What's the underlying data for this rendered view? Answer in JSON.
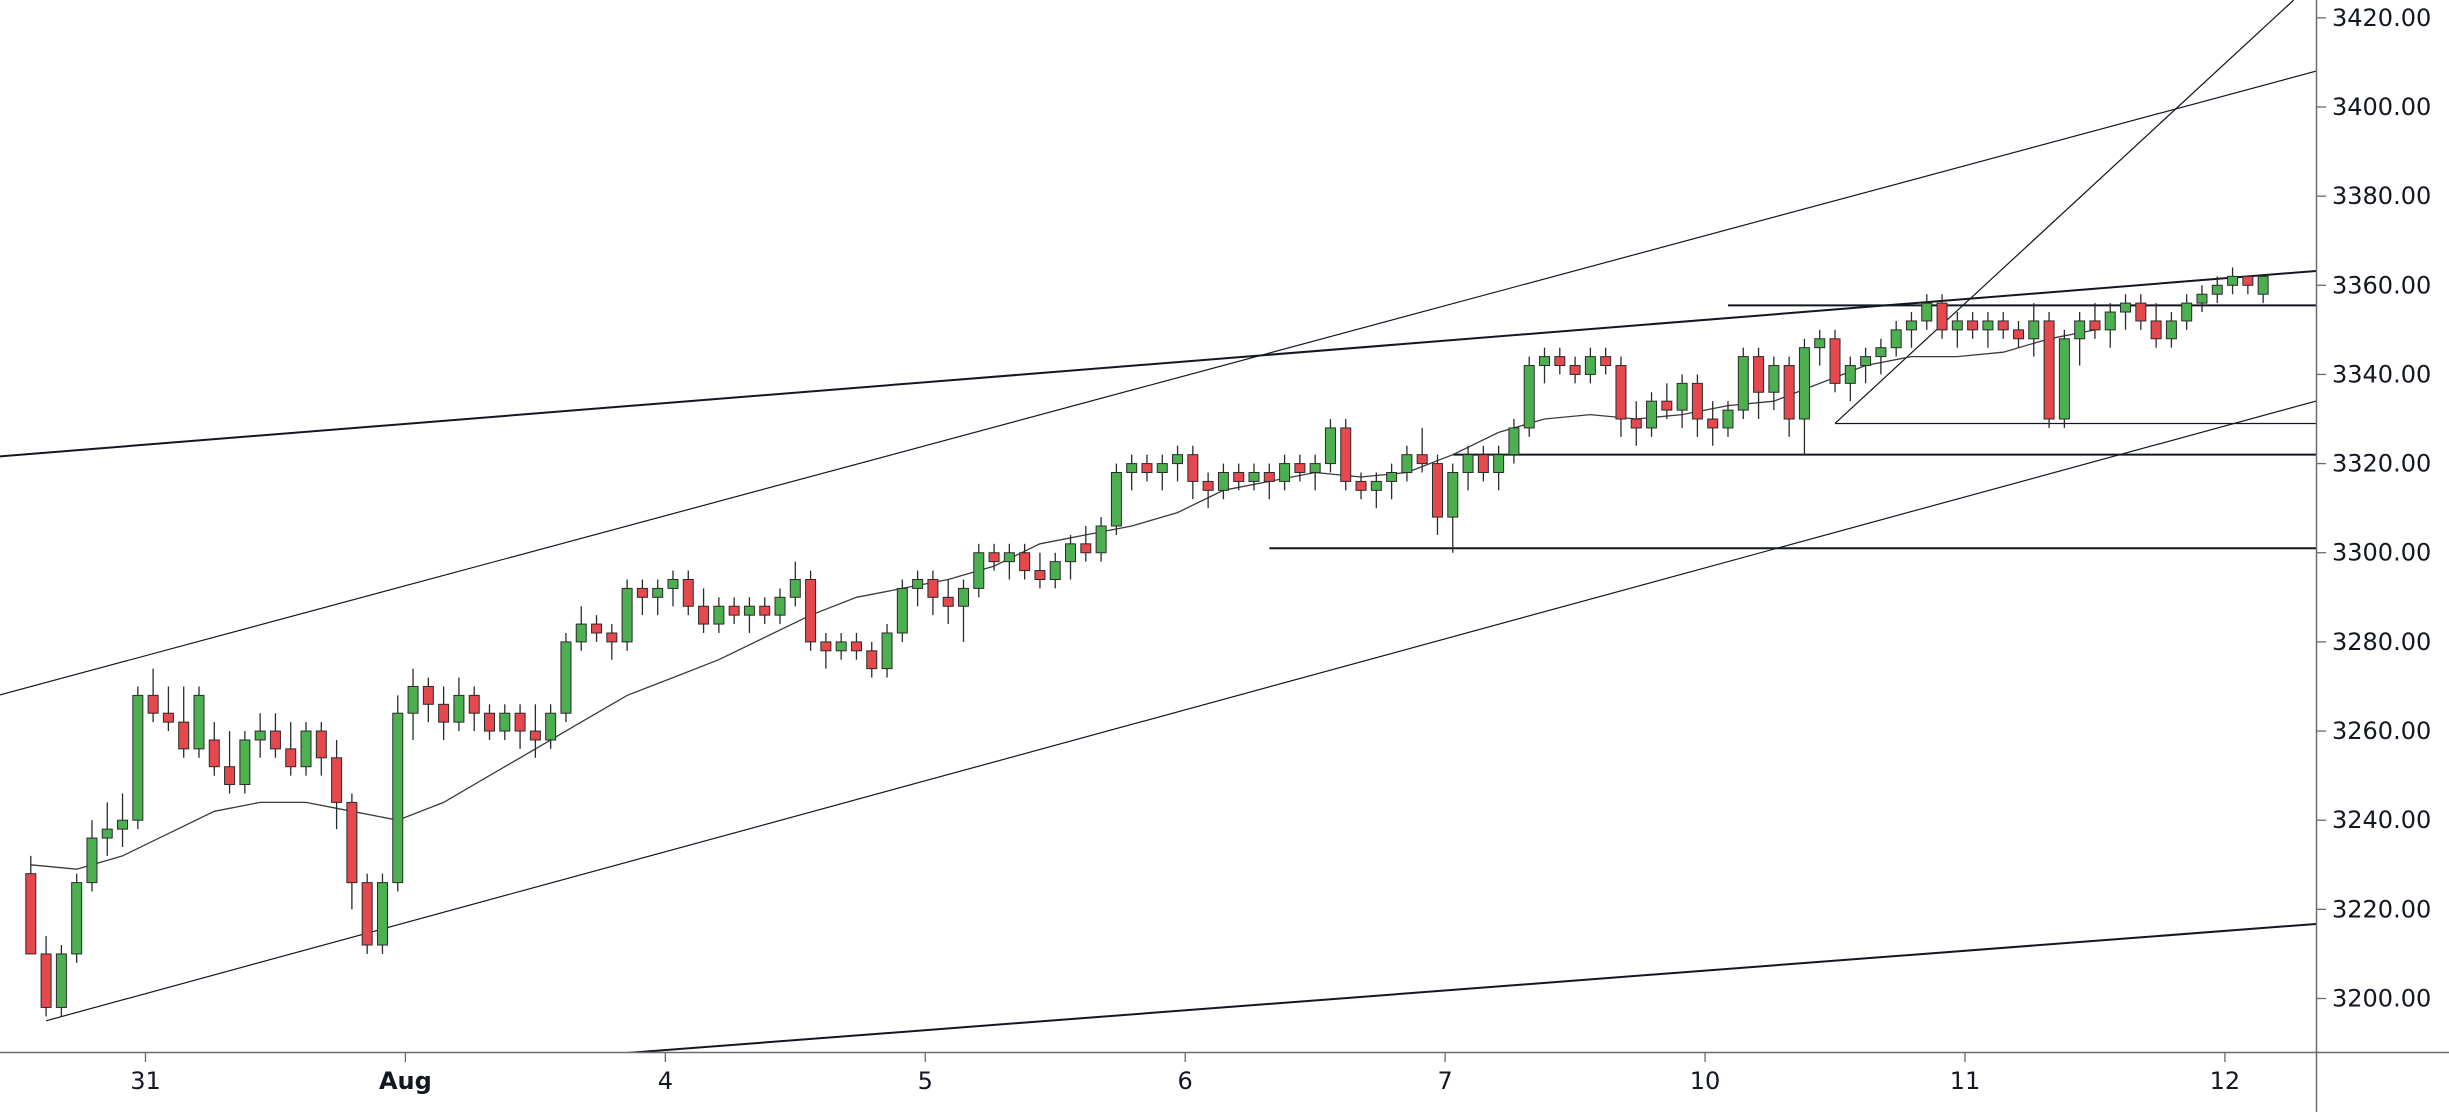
{
  "chart_data": {
    "type": "candlestick",
    "title": "",
    "xlabel": "",
    "ylabel": "",
    "ylim": [
      3188,
      3424
    ],
    "grid": false,
    "legend": "none",
    "colors": {
      "up_fill": "#4caf50",
      "down_fill": "#e5484d",
      "wick": "#2b2b2b",
      "line": "#131722",
      "axis": "#6b6b6b",
      "background": "#ffffff"
    },
    "y_ticks": [
      "3200.00",
      "3220.00",
      "3240.00",
      "3260.00",
      "3280.00",
      "3300.00",
      "3320.00",
      "3340.00",
      "3360.00",
      "3380.00",
      "3400.00",
      "3420.00"
    ],
    "x_ticks": [
      {
        "label": "31",
        "bar": 7.5,
        "bold": false
      },
      {
        "label": "Aug",
        "bar": 24.5,
        "bold": true
      },
      {
        "label": "4",
        "bar": 41.5,
        "bold": false
      },
      {
        "label": "5",
        "bar": 58.5,
        "bold": false
      },
      {
        "label": "6",
        "bar": 75.5,
        "bold": false
      },
      {
        "label": "7",
        "bar": 92.5,
        "bold": false
      },
      {
        "label": "10",
        "bar": 109.5,
        "bold": false
      },
      {
        "label": "11",
        "bar": 126.5,
        "bold": false
      },
      {
        "label": "12",
        "bar": 143.5,
        "bold": false
      }
    ],
    "bar_range": [
      0,
      150.5
    ],
    "candles": [
      [
        3228,
        3232,
        3212,
        3210
      ],
      [
        3210,
        3214,
        3196,
        3198
      ],
      [
        3198,
        3212,
        3196,
        3210
      ],
      [
        3210,
        3228,
        3208,
        3226
      ],
      [
        3226,
        3240,
        3224,
        3236
      ],
      [
        3236,
        3244,
        3232,
        3238
      ],
      [
        3238,
        3246,
        3234,
        3240
      ],
      [
        3240,
        3270,
        3238,
        3268
      ],
      [
        3268,
        3274,
        3262,
        3264
      ],
      [
        3264,
        3270,
        3260,
        3262
      ],
      [
        3262,
        3270,
        3254,
        3256
      ],
      [
        3256,
        3270,
        3254,
        3268
      ],
      [
        3258,
        3262,
        3250,
        3252
      ],
      [
        3252,
        3260,
        3246,
        3248
      ],
      [
        3248,
        3260,
        3246,
        3258
      ],
      [
        3258,
        3264,
        3254,
        3260
      ],
      [
        3260,
        3264,
        3254,
        3256
      ],
      [
        3256,
        3262,
        3250,
        3252
      ],
      [
        3252,
        3262,
        3250,
        3260
      ],
      [
        3260,
        3262,
        3250,
        3254
      ],
      [
        3254,
        3258,
        3238,
        3244
      ],
      [
        3244,
        3246,
        3220,
        3226
      ],
      [
        3226,
        3228,
        3210,
        3212
      ],
      [
        3212,
        3228,
        3210,
        3226
      ],
      [
        3226,
        3268,
        3224,
        3264
      ],
      [
        3264,
        3274,
        3258,
        3270
      ],
      [
        3270,
        3272,
        3262,
        3266
      ],
      [
        3266,
        3270,
        3258,
        3262
      ],
      [
        3262,
        3272,
        3260,
        3268
      ],
      [
        3268,
        3270,
        3260,
        3264
      ],
      [
        3264,
        3266,
        3258,
        3260
      ],
      [
        3260,
        3266,
        3258,
        3264
      ],
      [
        3264,
        3266,
        3256,
        3260
      ],
      [
        3260,
        3266,
        3254,
        3258
      ],
      [
        3258,
        3266,
        3256,
        3264
      ],
      [
        3264,
        3282,
        3262,
        3280
      ],
      [
        3280,
        3288,
        3278,
        3284
      ],
      [
        3284,
        3286,
        3280,
        3282
      ],
      [
        3282,
        3284,
        3276,
        3280
      ],
      [
        3280,
        3294,
        3278,
        3292
      ],
      [
        3292,
        3294,
        3286,
        3290
      ],
      [
        3290,
        3294,
        3286,
        3292
      ],
      [
        3292,
        3296,
        3288,
        3294
      ],
      [
        3294,
        3296,
        3286,
        3288
      ],
      [
        3288,
        3292,
        3282,
        3284
      ],
      [
        3284,
        3290,
        3282,
        3288
      ],
      [
        3288,
        3290,
        3284,
        3286
      ],
      [
        3286,
        3290,
        3282,
        3288
      ],
      [
        3288,
        3290,
        3284,
        3286
      ],
      [
        3286,
        3292,
        3284,
        3290
      ],
      [
        3290,
        3298,
        3288,
        3294
      ],
      [
        3294,
        3296,
        3278,
        3280
      ],
      [
        3280,
        3282,
        3274,
        3278
      ],
      [
        3278,
        3282,
        3276,
        3280
      ],
      [
        3280,
        3282,
        3276,
        3278
      ],
      [
        3278,
        3280,
        3272,
        3274
      ],
      [
        3274,
        3284,
        3272,
        3282
      ],
      [
        3282,
        3294,
        3280,
        3292
      ],
      [
        3292,
        3296,
        3288,
        3294
      ],
      [
        3294,
        3296,
        3286,
        3290
      ],
      [
        3290,
        3294,
        3284,
        3288
      ],
      [
        3288,
        3294,
        3280,
        3292
      ],
      [
        3292,
        3302,
        3290,
        3300
      ],
      [
        3300,
        3302,
        3296,
        3298
      ],
      [
        3298,
        3302,
        3294,
        3300
      ],
      [
        3300,
        3302,
        3294,
        3296
      ],
      [
        3296,
        3300,
        3292,
        3294
      ],
      [
        3294,
        3300,
        3292,
        3298
      ],
      [
        3298,
        3304,
        3294,
        3302
      ],
      [
        3302,
        3306,
        3298,
        3300
      ],
      [
        3300,
        3308,
        3298,
        3306
      ],
      [
        3306,
        3320,
        3304,
        3318
      ],
      [
        3318,
        3322,
        3314,
        3320
      ],
      [
        3320,
        3322,
        3316,
        3318
      ],
      [
        3318,
        3322,
        3314,
        3320
      ],
      [
        3320,
        3324,
        3316,
        3322
      ],
      [
        3322,
        3324,
        3312,
        3316
      ],
      [
        3316,
        3318,
        3310,
        3314
      ],
      [
        3314,
        3320,
        3312,
        3318
      ],
      [
        3318,
        3320,
        3314,
        3316
      ],
      [
        3316,
        3320,
        3314,
        3318
      ],
      [
        3318,
        3320,
        3312,
        3316
      ],
      [
        3316,
        3322,
        3314,
        3320
      ],
      [
        3320,
        3322,
        3316,
        3318
      ],
      [
        3318,
        3322,
        3314,
        3320
      ],
      [
        3320,
        3330,
        3318,
        3328
      ],
      [
        3328,
        3330,
        3314,
        3316
      ],
      [
        3316,
        3318,
        3312,
        3314
      ],
      [
        3314,
        3318,
        3310,
        3316
      ],
      [
        3316,
        3320,
        3312,
        3318
      ],
      [
        3318,
        3324,
        3316,
        3322
      ],
      [
        3322,
        3328,
        3318,
        3320
      ],
      [
        3320,
        3322,
        3304,
        3308
      ],
      [
        3308,
        3320,
        3300,
        3318
      ],
      [
        3318,
        3324,
        3314,
        3322
      ],
      [
        3322,
        3324,
        3316,
        3318
      ],
      [
        3318,
        3324,
        3314,
        3322
      ],
      [
        3322,
        3330,
        3320,
        3328
      ],
      [
        3328,
        3344,
        3326,
        3342
      ],
      [
        3342,
        3346,
        3338,
        3344
      ],
      [
        3344,
        3346,
        3340,
        3342
      ],
      [
        3342,
        3344,
        3338,
        3340
      ],
      [
        3340,
        3346,
        3338,
        3344
      ],
      [
        3344,
        3346,
        3340,
        3342
      ],
      [
        3342,
        3344,
        3326,
        3330
      ],
      [
        3330,
        3334,
        3324,
        3328
      ],
      [
        3328,
        3336,
        3326,
        3334
      ],
      [
        3334,
        3338,
        3330,
        3332
      ],
      [
        3332,
        3340,
        3328,
        3338
      ],
      [
        3338,
        3340,
        3326,
        3330
      ],
      [
        3330,
        3334,
        3324,
        3328
      ],
      [
        3328,
        3334,
        3326,
        3332
      ],
      [
        3332,
        3346,
        3330,
        3344
      ],
      [
        3344,
        3346,
        3330,
        3336
      ],
      [
        3336,
        3344,
        3332,
        3342
      ],
      [
        3342,
        3344,
        3326,
        3330
      ],
      [
        3330,
        3348,
        3322,
        3346
      ],
      [
        3346,
        3350,
        3342,
        3348
      ],
      [
        3348,
        3350,
        3336,
        3338
      ],
      [
        3338,
        3344,
        3334,
        3342
      ],
      [
        3342,
        3346,
        3338,
        3344
      ],
      [
        3344,
        3348,
        3340,
        3346
      ],
      [
        3346,
        3352,
        3344,
        3350
      ],
      [
        3350,
        3354,
        3346,
        3352
      ],
      [
        3352,
        3358,
        3350,
        3356
      ],
      [
        3356,
        3358,
        3348,
        3350
      ],
      [
        3350,
        3354,
        3346,
        3352
      ],
      [
        3352,
        3354,
        3348,
        3350
      ],
      [
        3350,
        3354,
        3346,
        3352
      ],
      [
        3352,
        3354,
        3348,
        3350
      ],
      [
        3350,
        3352,
        3346,
        3348
      ],
      [
        3348,
        3356,
        3344,
        3352
      ],
      [
        3352,
        3354,
        3328,
        3330
      ],
      [
        3330,
        3350,
        3328,
        3348
      ],
      [
        3348,
        3354,
        3342,
        3352
      ],
      [
        3352,
        3356,
        3348,
        3350
      ],
      [
        3350,
        3356,
        3346,
        3354
      ],
      [
        3354,
        3358,
        3350,
        3356
      ],
      [
        3356,
        3358,
        3350,
        3352
      ],
      [
        3352,
        3356,
        3346,
        3348
      ],
      [
        3348,
        3354,
        3346,
        3352
      ],
      [
        3352,
        3358,
        3350,
        3356
      ],
      [
        3356,
        3360,
        3354,
        3358
      ],
      [
        3358,
        3362,
        3356,
        3360
      ],
      [
        3360,
        3364,
        3358,
        3362
      ],
      [
        3362,
        3362,
        3358,
        3360
      ],
      [
        3358,
        3362,
        3356,
        3362
      ]
    ],
    "moving_average": {
      "bars": [
        0,
        3,
        6,
        9,
        12,
        15,
        18,
        21,
        24,
        27,
        30,
        33,
        36,
        39,
        42,
        45,
        48,
        51,
        54,
        57,
        60,
        63,
        66,
        69,
        72,
        75,
        78,
        81,
        84,
        87,
        90,
        93,
        96,
        99,
        102,
        105,
        108,
        111,
        114,
        117,
        120,
        123,
        126,
        129,
        132,
        135
      ],
      "values": [
        3230,
        3229,
        3232,
        3237,
        3242,
        3244,
        3244,
        3242,
        3240,
        3244,
        3250,
        3256,
        3262,
        3268,
        3272,
        3276,
        3281,
        3286,
        3290,
        3292,
        3294,
        3297,
        3302,
        3304,
        3306,
        3309,
        3314,
        3316,
        3318,
        3317,
        3318,
        3322,
        3327,
        3330,
        3331,
        3330,
        3331,
        3333,
        3334,
        3338,
        3342,
        3344,
        3344,
        3345,
        3348,
        3350
      ]
    },
    "lines": [
      {
        "x1": -4.3,
        "y1": 3321,
        "x2": 150.5,
        "y2": 3363.5,
        "width": 2
      },
      {
        "x1": -4.3,
        "y1": 3266,
        "x2": 150.5,
        "y2": 3409,
        "width": 1.2
      },
      {
        "x1": 1,
        "y1": 3195,
        "x2": 150.5,
        "y2": 3335,
        "width": 1.2
      },
      {
        "x1": 36,
        "y1": 3187,
        "x2": 150.5,
        "y2": 3217,
        "width": 2
      },
      {
        "x1": 111,
        "y1": 3355.5,
        "x2": 150.5,
        "y2": 3355.5,
        "width": 2
      },
      {
        "x1": 118,
        "y1": 3329,
        "x2": 150.5,
        "y2": 3329,
        "width": 1.2
      },
      {
        "x1": 93,
        "y1": 3322,
        "x2": 150.5,
        "y2": 3322,
        "width": 2
      },
      {
        "x1": 81,
        "y1": 3301,
        "x2": 150.5,
        "y2": 3301,
        "width": 2
      },
      {
        "x1": 118,
        "y1": 3329,
        "x2": 148,
        "y2": 3424,
        "width": 1.2
      }
    ]
  }
}
